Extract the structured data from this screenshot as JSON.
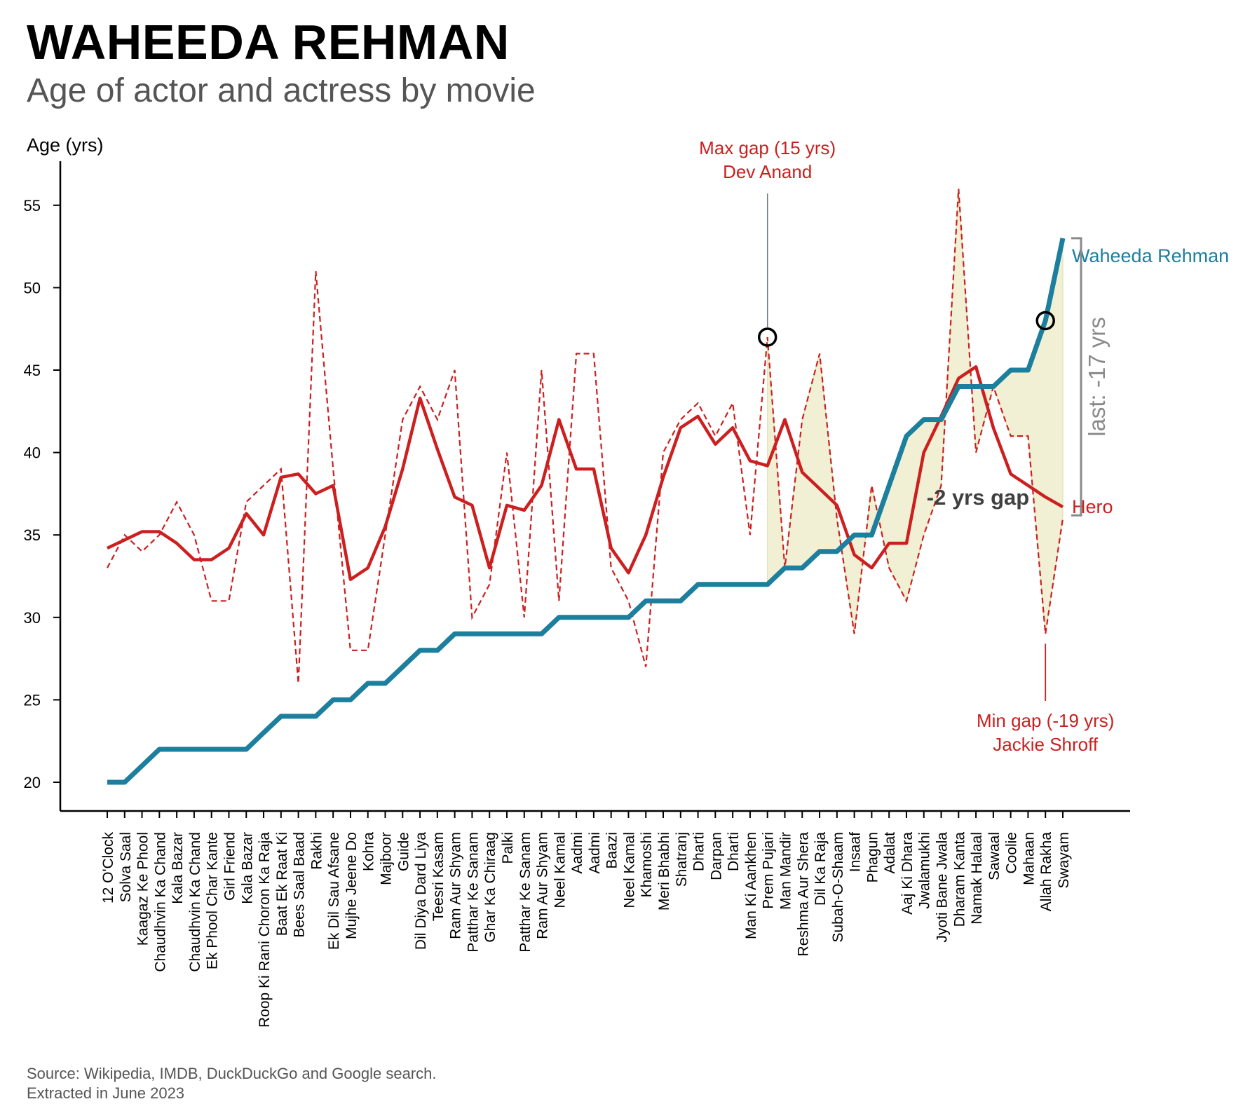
{
  "title": "WAHEEDA REHMAN",
  "subtitle": "Age of actor and actress by movie",
  "source_lines": [
    "Source: Wikipedia, IMDB, DuckDuckGo and Google search.",
    "Extracted in June 2023"
  ],
  "colors": {
    "actress": "#1d7f9e",
    "hero": "#cc1f1f",
    "fill": "#f1f0d5",
    "gray": "#8a8a8a",
    "annot_dark": "#404040"
  },
  "chart_data": {
    "type": "line",
    "ylabel": "Age (yrs)",
    "ylim": [
      18.3,
      57.8
    ],
    "yticks": [
      20,
      25,
      30,
      35,
      40,
      45,
      50,
      55
    ],
    "categories": [
      "12 O'Clock",
      "Solva Saal",
      "Kaagaz Ke Phool",
      "Chaudhvin Ka Chand",
      "Kala Bazar",
      "Chaudhvin Ka Chand",
      "Ek Phool Char Kante",
      "Girl Friend",
      "Kala Bazar",
      "Roop Ki Rani Choron Ka Raja",
      "Baat Ek Raat Ki",
      "Bees Saal Baad",
      "Rakhi",
      "Ek Dil Sau Afsane",
      "Mujhe Jeene Do",
      "Kohra",
      "Majboor",
      "Guide",
      "Dil Diya Dard Liya",
      "Teesri Kasam",
      "Ram Aur Shyam",
      "Patthar Ke Sanam",
      "Ghar Ka Chiraag",
      "Palki",
      "Patthar Ke Sanam",
      "Ram Aur Shyam",
      "Neel Kamal",
      "Aadmi",
      "Aadmi",
      "Baazi",
      "Neel Kamal",
      "Khamoshi",
      "Meri Bhabhi",
      "Shatranj",
      "Dharti",
      "Darpan",
      "Dharti",
      "Man Ki Aankhen",
      "Prem Pujari",
      "Man Mandir",
      "Reshma Aur Shera",
      "Dil Ka Raja",
      "Subah-O-Shaam",
      "Insaaf",
      "Phagun",
      "Adalat",
      "Aaj Ki Dhara",
      "Jwalamukhi",
      "Jyoti Bane Jwala",
      "Dharam Kanta",
      "Namak Halaal",
      "Sawaal",
      "Coolie",
      "Mahaan",
      "Allah Rakha",
      "Swayam"
    ],
    "series": [
      {
        "name": "Waheeda Rehman",
        "values": [
          20,
          20,
          21,
          22,
          22,
          22,
          22,
          22,
          22,
          23,
          24,
          24,
          24,
          25,
          25,
          26,
          26,
          27,
          28,
          28,
          29,
          29,
          29,
          29,
          29,
          29,
          30,
          30,
          30,
          30,
          30,
          31,
          31,
          31,
          32,
          32,
          32,
          32,
          32,
          33,
          33,
          34,
          34,
          35,
          35,
          38,
          41,
          42,
          42,
          44,
          44,
          44,
          45,
          45,
          48,
          53
        ]
      },
      {
        "name": "Hero",
        "values": [
          33,
          35,
          34,
          35,
          37,
          35,
          31,
          31,
          37,
          38,
          39,
          26,
          51,
          39,
          28,
          28,
          35,
          42,
          44,
          42,
          45,
          30,
          32,
          40,
          30,
          45,
          31,
          46,
          46,
          33,
          31,
          27,
          40,
          42,
          43,
          41,
          43,
          35,
          47,
          33,
          42,
          46,
          36,
          29,
          38,
          33,
          31,
          35,
          38,
          56,
          40,
          44,
          41,
          41,
          29,
          36
        ]
      },
      {
        "name": "Hero (rolling average)",
        "values": [
          34.2,
          34.7,
          35.2,
          35.2,
          34.5,
          33.5,
          33.5,
          34.2,
          36.3,
          35.0,
          38.5,
          38.7,
          37.5,
          38.0,
          32.3,
          33.0,
          35.5,
          39.0,
          43.3,
          40.2,
          37.3,
          36.8,
          33.0,
          36.8,
          36.5,
          38.0,
          42.0,
          39.0,
          39.0,
          34.2,
          32.7,
          35.0,
          38.5,
          41.5,
          42.2,
          40.5,
          41.5,
          39.5,
          39.2,
          42.0,
          38.8,
          37.8,
          36.8,
          33.8,
          33.0,
          34.5,
          34.5,
          40.0,
          42.2,
          44.5,
          45.2,
          41.5,
          38.7,
          38.0,
          37.3,
          36.7
        ]
      }
    ],
    "series_labels": {
      "actress": "Waheeda Rehman",
      "hero": "Hero"
    },
    "shaded_from_index": 38,
    "annotations": {
      "max_gap": {
        "lines": [
          "Max gap (15 yrs)",
          "Dev Anand"
        ],
        "index": 38,
        "value": 47
      },
      "min_gap": {
        "lines": [
          "Min gap (-19 yrs)",
          "Jackie Shroff"
        ],
        "index": 54,
        "value": 29,
        "circle_value": 48
      },
      "center_gap": "-2 yrs gap",
      "last_gap": "last: -17 yrs"
    }
  }
}
